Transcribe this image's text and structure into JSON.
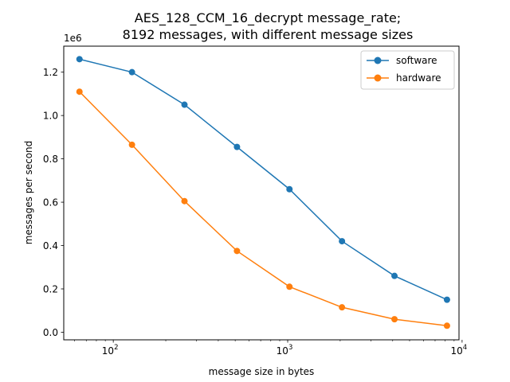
{
  "chart_data": {
    "type": "line",
    "title_line1": "AES_128_CCM_16_decrypt message_rate;",
    "title_line2": "8192 messages, with different message sizes",
    "xlabel": "message size in bytes",
    "ylabel": "messages per second",
    "y_offset_label": "1e6",
    "x_scale": "log",
    "xlim": [
      52,
      9600
    ],
    "ylim": [
      -0.035,
      1.32
    ],
    "y_ticks": [
      0.0,
      0.2,
      0.4,
      0.6,
      0.8,
      1.0,
      1.2
    ],
    "y_tick_labels": [
      "0.0",
      "0.2",
      "0.4",
      "0.6",
      "0.8",
      "1.0",
      "1.2"
    ],
    "x_ticks": [
      100,
      1000,
      10000
    ],
    "x_tick_labels": [
      "10",
      "10",
      "10"
    ],
    "x_tick_exponents": [
      "2",
      "3",
      "4"
    ],
    "grid": false,
    "legend_position": "top-right",
    "x": [
      64,
      128,
      256,
      512,
      1024,
      2048,
      4096,
      8192
    ],
    "series": [
      {
        "name": "software",
        "color": "#1f77b4",
        "values": [
          1.26,
          1.2,
          1.05,
          0.855,
          0.66,
          0.42,
          0.26,
          0.15
        ]
      },
      {
        "name": "hardware",
        "color": "#ff7f0e",
        "values": [
          1.11,
          0.865,
          0.605,
          0.375,
          0.21,
          0.115,
          0.06,
          0.03
        ]
      }
    ]
  }
}
